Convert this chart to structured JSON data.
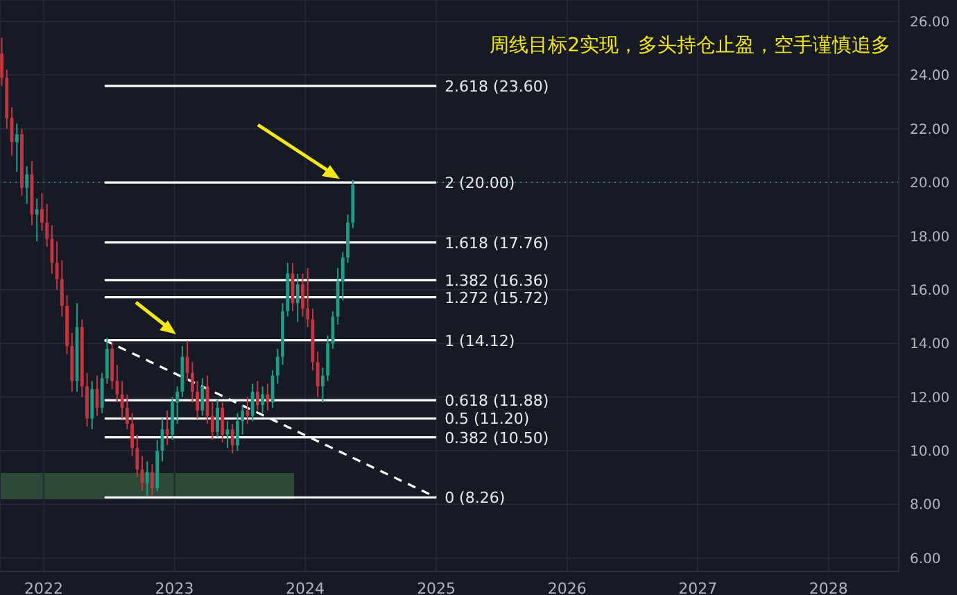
{
  "chart_data": {
    "type": "candlestick",
    "title": "周线目标2实现，多头持仓止盈，空手谨慎追多",
    "x": [
      "2021-09-06",
      "2021-09-20",
      "2021-10-04",
      "2021-10-18",
      "2021-11-01",
      "2021-11-15",
      "2021-11-29",
      "2021-12-13",
      "2021-12-27",
      "2022-01-10",
      "2022-01-24",
      "2022-02-07",
      "2022-02-21",
      "2022-03-07",
      "2022-03-21",
      "2022-04-04",
      "2022-04-18",
      "2022-05-02",
      "2022-05-16",
      "2022-05-30",
      "2022-06-13",
      "2022-06-27",
      "2022-07-11",
      "2022-07-25",
      "2022-08-08",
      "2022-08-22",
      "2022-09-05",
      "2022-09-19",
      "2022-10-03",
      "2022-10-17",
      "2022-10-31",
      "2022-11-14",
      "2022-11-28",
      "2022-12-12",
      "2022-12-26",
      "2023-01-09",
      "2023-01-23",
      "2023-02-06",
      "2023-02-20",
      "2023-03-06",
      "2023-03-20",
      "2023-04-03",
      "2023-04-17",
      "2023-05-01",
      "2023-05-15",
      "2023-05-29",
      "2023-06-12",
      "2023-06-26",
      "2023-07-10",
      "2023-07-24",
      "2023-08-07",
      "2023-08-21",
      "2023-09-04",
      "2023-09-18",
      "2023-10-02",
      "2023-10-16",
      "2023-10-30",
      "2023-11-13",
      "2023-11-27",
      "2023-12-11",
      "2023-12-25",
      "2024-01-08",
      "2024-01-22",
      "2024-02-05",
      "2024-02-19",
      "2024-03-04",
      "2024-03-18",
      "2024-04-01",
      "2024-04-15",
      "2024-04-29",
      "2024-05-13"
    ],
    "ohlc": [
      [
        24.8,
        25.4,
        23.6,
        23.9
      ],
      [
        23.9,
        24.2,
        22.0,
        22.4
      ],
      [
        22.4,
        22.8,
        21.0,
        21.5
      ],
      [
        21.5,
        22.2,
        20.4,
        21.8
      ],
      [
        21.8,
        22.0,
        19.5,
        19.8
      ],
      [
        19.8,
        20.6,
        19.2,
        20.3
      ],
      [
        20.3,
        20.8,
        18.4,
        18.8
      ],
      [
        18.8,
        19.4,
        17.8,
        19.0
      ],
      [
        19.0,
        19.6,
        18.2,
        18.5
      ],
      [
        18.5,
        19.2,
        17.6,
        17.9
      ],
      [
        17.9,
        18.4,
        16.6,
        17.0
      ],
      [
        17.0,
        17.8,
        16.0,
        16.4
      ],
      [
        16.4,
        17.1,
        15.0,
        15.4
      ],
      [
        15.4,
        15.8,
        13.6,
        13.9
      ],
      [
        13.9,
        14.4,
        12.2,
        12.6
      ],
      [
        12.6,
        15.5,
        12.2,
        14.6
      ],
      [
        14.6,
        14.9,
        12.0,
        12.4
      ],
      [
        12.4,
        12.9,
        10.9,
        11.2
      ],
      [
        11.2,
        12.6,
        10.8,
        12.3
      ],
      [
        12.3,
        12.8,
        11.3,
        11.6
      ],
      [
        11.6,
        12.9,
        11.4,
        12.7
      ],
      [
        12.7,
        14.2,
        12.5,
        13.8
      ],
      [
        13.8,
        14.0,
        12.3,
        12.6
      ],
      [
        12.6,
        13.2,
        11.8,
        12.1
      ],
      [
        12.1,
        12.6,
        11.2,
        11.6
      ],
      [
        11.6,
        12.1,
        10.8,
        11.0
      ],
      [
        11.0,
        11.4,
        9.8,
        10.1
      ],
      [
        10.1,
        10.6,
        9.0,
        9.3
      ],
      [
        9.3,
        9.8,
        8.5,
        8.8
      ],
      [
        8.8,
        9.6,
        8.3,
        9.2
      ],
      [
        9.2,
        9.5,
        8.3,
        8.6
      ],
      [
        8.6,
        10.4,
        8.5,
        10.0
      ],
      [
        10.0,
        11.2,
        9.6,
        10.8
      ],
      [
        10.8,
        11.5,
        10.2,
        10.6
      ],
      [
        10.6,
        12.0,
        10.4,
        11.8
      ],
      [
        11.8,
        12.4,
        11.0,
        12.2
      ],
      [
        12.2,
        13.9,
        12.0,
        13.5
      ],
      [
        13.5,
        14.1,
        12.6,
        12.9
      ],
      [
        12.9,
        13.3,
        11.8,
        12.2
      ],
      [
        12.2,
        12.6,
        11.2,
        11.5
      ],
      [
        11.5,
        12.7,
        11.3,
        12.4
      ],
      [
        12.4,
        12.8,
        11.0,
        11.3
      ],
      [
        11.3,
        11.8,
        10.4,
        10.7
      ],
      [
        10.7,
        11.9,
        10.5,
        11.6
      ],
      [
        11.6,
        11.8,
        10.3,
        10.6
      ],
      [
        10.6,
        11.1,
        10.1,
        10.8
      ],
      [
        10.8,
        11.0,
        9.9,
        10.2
      ],
      [
        10.2,
        11.4,
        10.0,
        11.1
      ],
      [
        11.1,
        11.7,
        10.6,
        11.5
      ],
      [
        11.5,
        12.0,
        11.0,
        11.3
      ],
      [
        11.3,
        12.5,
        11.1,
        12.2
      ],
      [
        12.2,
        12.6,
        11.5,
        11.7
      ],
      [
        11.7,
        12.4,
        11.4,
        12.1
      ],
      [
        12.1,
        12.5,
        11.5,
        11.8
      ],
      [
        11.8,
        13.0,
        11.6,
        12.8
      ],
      [
        12.8,
        13.8,
        12.5,
        13.5
      ],
      [
        13.5,
        15.5,
        13.2,
        15.2
      ],
      [
        15.2,
        17.0,
        15.0,
        16.6
      ],
      [
        16.6,
        17.0,
        15.2,
        15.5
      ],
      [
        15.5,
        16.6,
        14.8,
        16.2
      ],
      [
        16.2,
        16.6,
        15.0,
        15.3
      ],
      [
        15.3,
        16.8,
        14.6,
        14.9
      ],
      [
        14.9,
        15.3,
        13.0,
        13.3
      ],
      [
        13.3,
        13.7,
        12.0,
        12.4
      ],
      [
        12.4,
        13.1,
        11.8,
        12.8
      ],
      [
        12.8,
        14.3,
        12.6,
        14.0
      ],
      [
        14.0,
        15.2,
        13.8,
        15.0
      ],
      [
        15.0,
        16.8,
        14.7,
        16.3
      ],
      [
        16.3,
        17.4,
        15.6,
        17.2
      ],
      [
        17.2,
        18.8,
        17.0,
        18.5
      ],
      [
        18.5,
        20.1,
        18.3,
        19.9
      ]
    ],
    "series": [
      {
        "type": "line",
        "name": "2.618 (23.60)",
        "color": "#ffffff",
        "x": [
          "2022-06-20",
          "2025-01-01"
        ],
        "values": [
          23.6,
          23.6
        ]
      },
      {
        "type": "line",
        "name": "2 (20.00)",
        "color": "#ffffff",
        "x": [
          "2022-06-20",
          "2025-01-01"
        ],
        "values": [
          20.0,
          20.0
        ]
      },
      {
        "type": "line",
        "name": "1.618 (17.76)",
        "color": "#ffffff",
        "x": [
          "2022-06-20",
          "2025-01-01"
        ],
        "values": [
          17.76,
          17.76
        ]
      },
      {
        "type": "line",
        "name": "1.382 (16.36)",
        "color": "#ffffff",
        "x": [
          "2022-06-20",
          "2025-01-01"
        ],
        "values": [
          16.36,
          16.36
        ]
      },
      {
        "type": "line",
        "name": "1.272 (15.72)",
        "color": "#ffffff",
        "x": [
          "2022-06-20",
          "2025-01-01"
        ],
        "values": [
          15.72,
          15.72
        ]
      },
      {
        "type": "line",
        "name": "1 (14.12)",
        "color": "#ffffff",
        "x": [
          "2022-06-20",
          "2025-01-01"
        ],
        "values": [
          14.12,
          14.12
        ]
      },
      {
        "type": "line",
        "name": "0.618 (11.88)",
        "color": "#ffffff",
        "x": [
          "2022-06-20",
          "2025-01-01"
        ],
        "values": [
          11.88,
          11.88
        ]
      },
      {
        "type": "line",
        "name": "0.5 (11.20)",
        "color": "#ffffff",
        "x": [
          "2022-06-20",
          "2025-01-01"
        ],
        "values": [
          11.2,
          11.2
        ]
      },
      {
        "type": "line",
        "name": "0.382 (10.50)",
        "color": "#ffffff",
        "x": [
          "2022-06-20",
          "2025-01-01"
        ],
        "values": [
          10.5,
          10.5
        ]
      },
      {
        "type": "line",
        "name": "0 (8.26)",
        "color": "#ffffff",
        "x": [
          "2022-06-20",
          "2025-01-01"
        ],
        "values": [
          8.26,
          8.26
        ]
      },
      {
        "type": "line",
        "color": "#ffffff",
        "line_style": "dashed",
        "x": [
          "2022-06-20",
          "2025-01-01"
        ],
        "values": [
          14.12,
          8.26
        ]
      }
    ],
    "ref_lines": [
      {
        "axis": "y",
        "value": 20.0,
        "color": "#1f8a7a",
        "line_style": "dotted"
      }
    ],
    "xlim": [
      "2021-09-01",
      "2028-07-15"
    ],
    "xticks": [
      "2022",
      "2023",
      "2024",
      "2025",
      "2026",
      "2027",
      "2028"
    ],
    "ylim": [
      5.5,
      26.8
    ],
    "yticks": [
      {
        "value": 6,
        "label": "6.00"
      },
      {
        "value": 8,
        "label": "8.00"
      },
      {
        "value": 10,
        "label": "10.00"
      },
      {
        "value": 12,
        "label": "12.00"
      },
      {
        "value": 14,
        "label": "14.00"
      },
      {
        "value": 16,
        "label": "16.00"
      },
      {
        "value": 18,
        "label": "18.00"
      },
      {
        "value": 20,
        "label": "20.00"
      },
      {
        "value": 22,
        "label": "22.00"
      },
      {
        "value": 24,
        "label": "24.00"
      },
      {
        "value": 26,
        "label": "26.00"
      }
    ],
    "grid": true
  }
}
